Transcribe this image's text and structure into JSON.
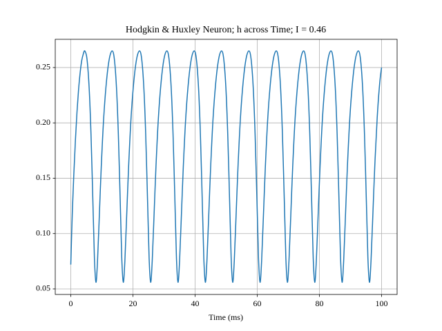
{
  "chart_data": {
    "type": "line",
    "title": "Hodgkin & Huxley Neuron; h across Time; I = 0.46",
    "x_label": "Time (ms)",
    "xlim": [
      -5,
      105
    ],
    "ylim": [
      0.045,
      0.2755
    ],
    "xticks": [
      0,
      20,
      40,
      60,
      80,
      100
    ],
    "yticks": [
      0.05,
      {
        "value": 0.1,
        "label": "0.10"
      },
      0.15,
      {
        "value": 0.2,
        "label": "0.20"
      },
      0.25
    ],
    "grid": true,
    "series": [
      {
        "color": "#1f77b4",
        "x": [
          0,
          0.5,
          1,
          1.5,
          2,
          2.5,
          3,
          3.5,
          4,
          4.5,
          5.2,
          5.9,
          6.5,
          7.1,
          7.6,
          8.1,
          8.6,
          9.1,
          9.8,
          10.6,
          11.5,
          12.4,
          13.3,
          14,
          14.7,
          15.3,
          15.9,
          16.4,
          16.9,
          17.4,
          17.9,
          18.6,
          19.4,
          20.3,
          21.2,
          22.1,
          22.8,
          23.5,
          24.1,
          24.7,
          25.2,
          25.7,
          26.2,
          26.7,
          27.4,
          28.2,
          29.1,
          30,
          30.9,
          31.6,
          32.3,
          32.9,
          33.5,
          34,
          34.5,
          35,
          35.5,
          36.2,
          37,
          37.9,
          38.8,
          39.7,
          40.4,
          41.1,
          41.7,
          42.3,
          42.8,
          43.3,
          43.8,
          44.3,
          45,
          45.8,
          46.7,
          47.6,
          48.5,
          49.2,
          49.9,
          50.5,
          51.1,
          51.6,
          52.1,
          52.6,
          53.1,
          53.8,
          54.6,
          55.5,
          56.4,
          57.3,
          58,
          58.7,
          59.3,
          59.9,
          60.4,
          60.9,
          61.4,
          61.9,
          62.6,
          63.4,
          64.3,
          65.2,
          66.1,
          66.8,
          67.5,
          68.1,
          68.7,
          69.2,
          69.7,
          70.2,
          70.7,
          71.4,
          72.2,
          73.1,
          74,
          74.9,
          75.6,
          76.3,
          76.9,
          77.5,
          78,
          78.5,
          79,
          79.5,
          80.2,
          81,
          81.9,
          82.8,
          83.7,
          84.4,
          85.1,
          85.7,
          86.3,
          86.8,
          87.3,
          87.8,
          88.3,
          89,
          89.8,
          90.7,
          91.6,
          92.5,
          93.2,
          93.9,
          94.5,
          95.1,
          95.6,
          96.1,
          96.6,
          97.1,
          97.8,
          98.6,
          99.4,
          100
        ],
        "values": [
          0.072,
          0.12,
          0.155,
          0.185,
          0.21,
          0.23,
          0.245,
          0.256,
          0.262,
          0.265,
          0.258,
          0.232,
          0.19,
          0.13,
          0.078,
          0.056,
          0.075,
          0.11,
          0.16,
          0.205,
          0.238,
          0.258,
          0.265,
          0.258,
          0.232,
          0.19,
          0.13,
          0.078,
          0.056,
          0.075,
          0.11,
          0.16,
          0.205,
          0.238,
          0.258,
          0.265,
          0.258,
          0.232,
          0.19,
          0.13,
          0.078,
          0.056,
          0.075,
          0.11,
          0.16,
          0.205,
          0.238,
          0.258,
          0.265,
          0.258,
          0.232,
          0.19,
          0.13,
          0.078,
          0.056,
          0.075,
          0.11,
          0.16,
          0.205,
          0.238,
          0.258,
          0.265,
          0.258,
          0.232,
          0.19,
          0.13,
          0.078,
          0.056,
          0.075,
          0.11,
          0.16,
          0.205,
          0.238,
          0.258,
          0.265,
          0.258,
          0.232,
          0.19,
          0.13,
          0.078,
          0.056,
          0.075,
          0.11,
          0.16,
          0.205,
          0.238,
          0.258,
          0.265,
          0.258,
          0.232,
          0.19,
          0.13,
          0.078,
          0.056,
          0.075,
          0.11,
          0.16,
          0.205,
          0.238,
          0.258,
          0.265,
          0.258,
          0.232,
          0.19,
          0.13,
          0.078,
          0.056,
          0.075,
          0.11,
          0.16,
          0.205,
          0.238,
          0.258,
          0.265,
          0.258,
          0.232,
          0.19,
          0.13,
          0.078,
          0.056,
          0.075,
          0.11,
          0.16,
          0.205,
          0.238,
          0.258,
          0.265,
          0.258,
          0.232,
          0.19,
          0.13,
          0.078,
          0.056,
          0.075,
          0.11,
          0.16,
          0.205,
          0.238,
          0.258,
          0.265,
          0.258,
          0.232,
          0.19,
          0.13,
          0.078,
          0.056,
          0.075,
          0.11,
          0.16,
          0.205,
          0.236,
          0.25
        ]
      }
    ]
  }
}
